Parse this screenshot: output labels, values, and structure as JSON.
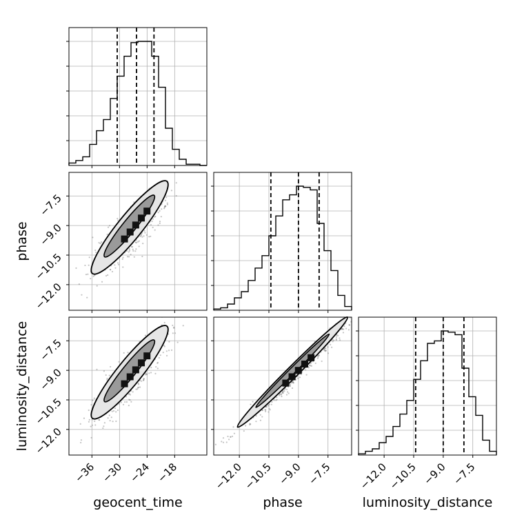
{
  "chart_data": {
    "type": "corner",
    "parameters": [
      "geocent_time",
      "phase",
      "luminosity_distance"
    ],
    "axis_labels": {
      "bottom": [
        "geocent_time",
        "phase",
        "luminosity_distance"
      ],
      "left": [
        "phase",
        "luminosity_distance"
      ]
    },
    "grid": true,
    "ranges": {
      "geocent_time": [
        -41,
        -11
      ],
      "phase": [
        -13.3,
        -6.3
      ],
      "luminosity_distance": [
        -13.3,
        -6.3
      ]
    },
    "ticks": {
      "geocent_time": [
        {
          "value": -36,
          "label": "−36"
        },
        {
          "value": -30,
          "label": "−30"
        },
        {
          "value": -24,
          "label": "−24"
        },
        {
          "value": -18,
          "label": "−18"
        }
      ],
      "phase": [
        {
          "value": -12.0,
          "label": "−12.0"
        },
        {
          "value": -10.5,
          "label": "−10.5"
        },
        {
          "value": -9.0,
          "label": "−9.0"
        },
        {
          "value": -7.5,
          "label": "−7.5"
        }
      ],
      "luminosity_distance": [
        {
          "value": -12.0,
          "label": "−12.0"
        },
        {
          "value": -10.5,
          "label": "−10.5"
        },
        {
          "value": -9.0,
          "label": "−9.0"
        },
        {
          "value": -7.5,
          "label": "−7.5"
        }
      ]
    },
    "histograms": [
      {
        "parameter": "geocent_time",
        "bin_edges": [
          -41,
          -39.5,
          -38,
          -36.5,
          -35,
          -33.5,
          -32,
          -30.5,
          -29,
          -27.5,
          -26,
          -24.5,
          -23,
          -21.5,
          -20,
          -18.5,
          -17,
          -15.5,
          -14,
          -12.5,
          -11
        ],
        "counts": [
          0.02,
          0.04,
          0.07,
          0.17,
          0.28,
          0.37,
          0.54,
          0.72,
          0.88,
          0.99,
          1.0,
          1.0,
          0.88,
          0.63,
          0.3,
          0.13,
          0.05,
          0.01,
          0.01,
          0.0
        ],
        "quantiles": [
          -30.5,
          -26.3,
          -22.5
        ],
        "y_tick_count": 5
      },
      {
        "parameter": "phase",
        "bin_edges": [
          -13.3,
          -12.95,
          -12.6,
          -12.25,
          -11.9,
          -11.55,
          -11.2,
          -10.85,
          -10.5,
          -10.15,
          -9.8,
          -9.45,
          -9.1,
          -8.75,
          -8.4,
          -8.05,
          -7.7,
          -7.35,
          -7.0,
          -6.65,
          -6.3
        ],
        "counts": [
          0.01,
          0.02,
          0.05,
          0.1,
          0.15,
          0.24,
          0.34,
          0.44,
          0.6,
          0.76,
          0.89,
          0.93,
          1.0,
          0.99,
          0.97,
          0.7,
          0.48,
          0.32,
          0.12,
          0.03
        ],
        "quantiles": [
          -10.4,
          -9.0,
          -7.95
        ],
        "y_tick_count": 5
      },
      {
        "parameter": "luminosity_distance",
        "bin_edges": [
          -13.3,
          -12.95,
          -12.6,
          -12.25,
          -11.9,
          -11.55,
          -11.2,
          -10.85,
          -10.5,
          -10.15,
          -9.8,
          -9.45,
          -9.1,
          -8.75,
          -8.4,
          -8.05,
          -7.7,
          -7.35,
          -7.0,
          -6.65,
          -6.3
        ],
        "counts": [
          0.01,
          0.03,
          0.05,
          0.1,
          0.15,
          0.23,
          0.33,
          0.44,
          0.61,
          0.76,
          0.9,
          0.92,
          1.0,
          0.99,
          0.97,
          0.7,
          0.47,
          0.32,
          0.12,
          0.03
        ],
        "quantiles": [
          -10.4,
          -9.0,
          -7.95
        ],
        "y_tick_count": 5
      }
    ],
    "joint_plots": [
      {
        "x": "geocent_time",
        "y": "phase",
        "points_center": {
          "x": -27.6,
          "y": -9.3
        },
        "extent": {
          "x": [
            -37.5,
            -19.5
          ],
          "y": [
            -12.0,
            -6.8
          ]
        },
        "contour_levels": 2
      },
      {
        "x": "geocent_time",
        "y": "luminosity_distance",
        "points_center": {
          "x": -27.6,
          "y": -9.3
        },
        "extent": {
          "x": [
            -37.5,
            -19.5
          ],
          "y": [
            -12.0,
            -6.8
          ]
        },
        "contour_levels": 2
      },
      {
        "x": "phase",
        "y": "luminosity_distance",
        "points_center": {
          "x": -9.3,
          "y": -9.3
        },
        "extent": {
          "x": [
            -12.6,
            -6.4
          ],
          "y": [
            -12.6,
            -6.4
          ]
        },
        "contour_levels": 2
      }
    ]
  }
}
